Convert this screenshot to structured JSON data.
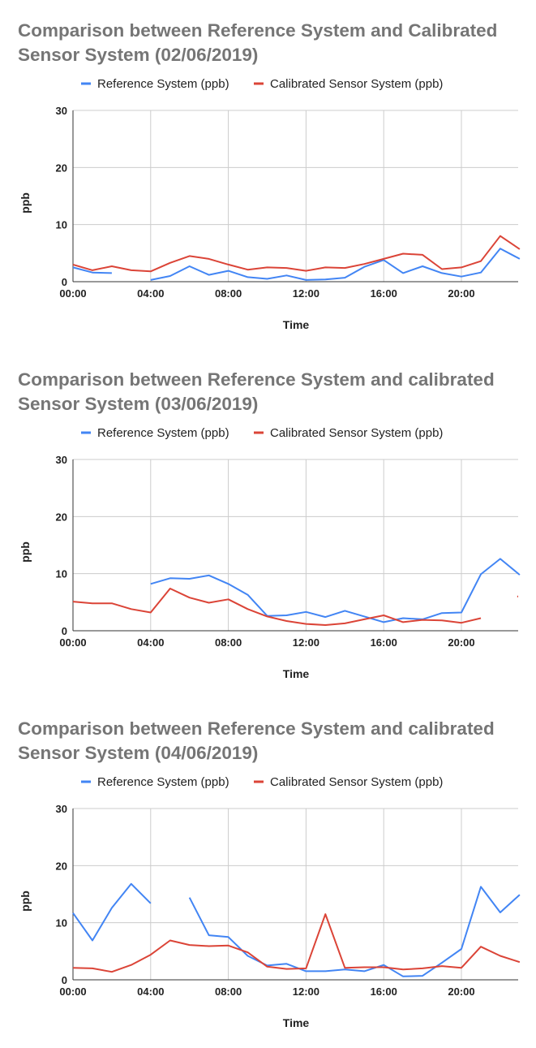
{
  "colors": {
    "reference": "#4285f4",
    "calibrated": "#db4437",
    "grid": "#cccccc",
    "axis": "#333333"
  },
  "chart_data": [
    {
      "type": "line",
      "title_line1": "Comparison between  Reference System and Calibrated",
      "title_line2": "Sensor System (02/06/2019)",
      "xlabel": "Time",
      "ylabel": "ppb",
      "ylim": [
        0,
        30
      ],
      "yticks": [
        "0",
        "10",
        "20",
        "30"
      ],
      "xticks": [
        "00:00",
        "04:00",
        "08:00",
        "12:00",
        "16:00",
        "20:00"
      ],
      "legend_position": "top",
      "x": [
        0,
        1,
        2,
        3,
        4,
        5,
        6,
        7,
        8,
        9,
        10,
        11,
        12,
        13,
        14,
        15,
        16,
        17,
        18,
        19,
        20,
        21,
        22,
        23
      ],
      "series": [
        {
          "name": "Reference System (ppb)",
          "color": "#4285f4",
          "values": [
            2.5,
            1.6,
            1.5,
            null,
            0.3,
            1.0,
            2.7,
            1.2,
            1.9,
            0.8,
            0.5,
            1.1,
            0.3,
            0.4,
            0.7,
            2.6,
            3.8,
            1.5,
            2.7,
            1.5,
            0.9,
            1.6,
            5.8,
            4.0
          ]
        },
        {
          "name": "Calibrated Sensor System (ppb)",
          "color": "#db4437",
          "values": [
            3.0,
            2.0,
            2.7,
            2.0,
            1.8,
            3.3,
            4.5,
            4.0,
            3.0,
            2.1,
            2.5,
            2.4,
            1.9,
            2.5,
            2.4,
            3.1,
            4.0,
            4.9,
            4.7,
            2.2,
            2.5,
            3.6,
            8.0,
            5.7
          ]
        }
      ]
    },
    {
      "type": "line",
      "title_line1": "Comparison between  Reference System and calibrated",
      "title_line2": "Sensor System (03/06/2019)",
      "xlabel": "Time",
      "ylabel": "ppb",
      "ylim": [
        0,
        30
      ],
      "yticks": [
        "0",
        "10",
        "20",
        "30"
      ],
      "xticks": [
        "00:00",
        "04:00",
        "08:00",
        "12:00",
        "16:00",
        "20:00"
      ],
      "legend_position": "top",
      "x": [
        0,
        1,
        2,
        3,
        4,
        5,
        6,
        7,
        8,
        9,
        10,
        11,
        12,
        13,
        14,
        15,
        16,
        17,
        18,
        19,
        20,
        21,
        22,
        23
      ],
      "series": [
        {
          "name": "Reference System (ppb)",
          "color": "#4285f4",
          "values": [
            null,
            null,
            null,
            null,
            8.2,
            9.2,
            9.1,
            9.7,
            8.2,
            6.3,
            2.6,
            2.7,
            3.3,
            2.4,
            3.5,
            2.5,
            1.5,
            2.2,
            2.0,
            3.1,
            3.2,
            9.9,
            12.6,
            9.8
          ]
        },
        {
          "name": "Calibrated Sensor System (ppb)",
          "color": "#db4437",
          "values": [
            5.1,
            4.8,
            4.8,
            3.8,
            3.2,
            7.4,
            5.8,
            4.9,
            5.5,
            3.8,
            2.5,
            1.7,
            1.2,
            1.0,
            1.3,
            2.0,
            2.7,
            1.5,
            1.9,
            1.8,
            1.4,
            2.2,
            null,
            6.0
          ]
        }
      ]
    },
    {
      "type": "line",
      "title_line1": "Comparison between  Reference System and calibrated",
      "title_line2": "Sensor System (04/06/2019)",
      "xlabel": "Time",
      "ylabel": "ppb",
      "ylim": [
        0,
        30
      ],
      "yticks": [
        "0",
        "10",
        "20",
        "30"
      ],
      "xticks": [
        "00:00",
        "04:00",
        "08:00",
        "12:00",
        "16:00",
        "20:00"
      ],
      "legend_position": "top",
      "x": [
        0,
        1,
        2,
        3,
        4,
        5,
        6,
        7,
        8,
        9,
        10,
        11,
        12,
        13,
        14,
        15,
        16,
        17,
        18,
        19,
        20,
        21,
        22,
        23
      ],
      "series": [
        {
          "name": "Reference System (ppb)",
          "color": "#4285f4",
          "values": [
            11.7,
            6.9,
            12.6,
            16.8,
            13.4,
            null,
            14.4,
            7.8,
            7.5,
            4.2,
            2.5,
            2.8,
            1.5,
            1.5,
            1.8,
            1.5,
            2.6,
            0.6,
            0.7,
            3.0,
            5.4,
            16.3,
            11.8,
            14.9
          ]
        },
        {
          "name": "Calibrated Sensor System (ppb)",
          "color": "#db4437",
          "values": [
            2.1,
            2.0,
            1.4,
            2.6,
            4.4,
            6.9,
            6.1,
            5.9,
            6.0,
            4.8,
            2.3,
            1.9,
            2.0,
            11.5,
            2.1,
            2.2,
            2.2,
            1.8,
            2.0,
            2.4,
            2.1,
            5.8,
            4.2,
            3.1
          ]
        }
      ]
    }
  ]
}
